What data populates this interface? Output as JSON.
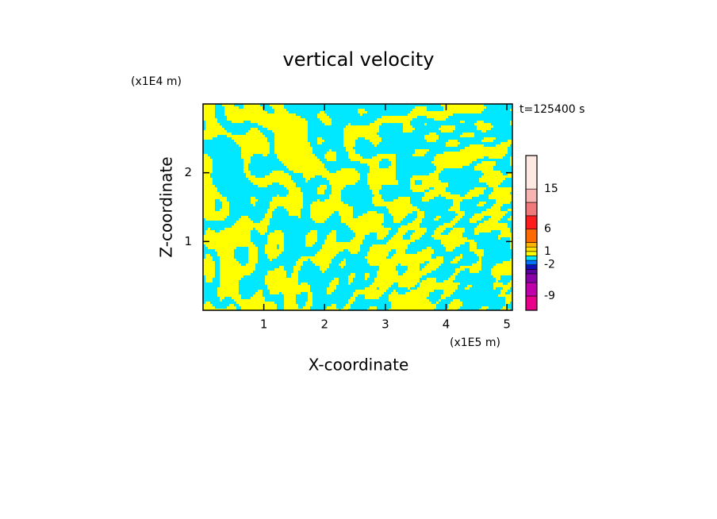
{
  "chart_data": {
    "type": "contour",
    "title": "vertical velocity",
    "time_label": "t=125400 s",
    "xlabel": "X-coordinate",
    "xunit": "(x1E5 m)",
    "ylabel": "Z-coordinate",
    "yunit": "(x1E4 m)",
    "xlim": [
      0,
      5.09
    ],
    "xticks": [
      1,
      2,
      3,
      4,
      5
    ],
    "ylim": [
      0,
      3
    ],
    "yticks": [
      1,
      2
    ],
    "colorbar": {
      "lim": [
        -12.2,
        22.5
      ],
      "ticks": [
        -9,
        -2,
        1,
        6,
        15
      ],
      "levels": [
        -12.2,
        -9,
        -6,
        -4,
        -3,
        -2,
        -1,
        0,
        1,
        2,
        3,
        6,
        9,
        12,
        15,
        22.5
      ],
      "colors": [
        "#e8008a",
        "#c000a8",
        "#8a00a8",
        "#5a00a0",
        "#1010b8",
        "#0070ff",
        "#00e8ff",
        "#ffff00",
        "#ffe000",
        "#ffb400",
        "#ff6a00",
        "#ff1c1c",
        "#f07a7a",
        "#f7b4b0",
        "#fde9e2"
      ]
    }
  }
}
